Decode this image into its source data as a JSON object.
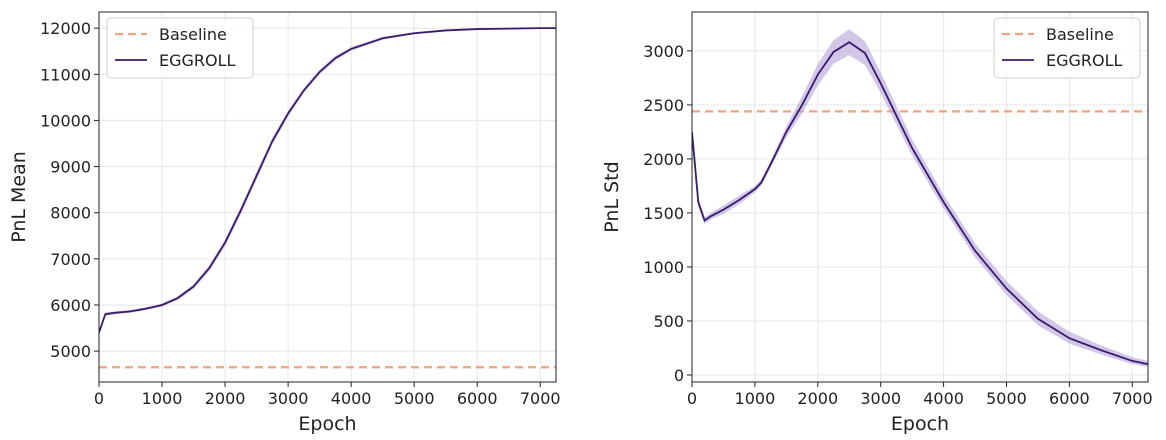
{
  "chart_data": [
    {
      "type": "line",
      "x_label": "Epoch",
      "y_label": "PnL Mean",
      "legend": "upper left",
      "grid": true,
      "xlim": [
        0,
        7250
      ],
      "ylim": [
        4330,
        12350
      ],
      "xticks": [
        0,
        1000,
        2000,
        3000,
        4000,
        5000,
        6000,
        7000
      ],
      "yticks": [
        5000,
        6000,
        7000,
        8000,
        9000,
        10000,
        11000,
        12000
      ],
      "x": [
        0,
        100,
        250,
        500,
        750,
        1000,
        1250,
        1500,
        1750,
        2000,
        2250,
        2500,
        2750,
        3000,
        3250,
        3500,
        3750,
        4000,
        4500,
        5000,
        5500,
        6000,
        6500,
        7000,
        7250
      ],
      "series": [
        {
          "name": "Baseline",
          "color": "#f2a27f",
          "dashed": true,
          "value": 4650
        },
        {
          "name": "EGGROLL",
          "color": "#3b1a6e",
          "band_color": "#b9abdb",
          "values": [
            5400,
            5800,
            5830,
            5860,
            5920,
            6000,
            6150,
            6400,
            6800,
            7350,
            8050,
            8800,
            9550,
            10150,
            10650,
            11050,
            11350,
            11550,
            11780,
            11890,
            11950,
            11980,
            11990,
            12000,
            12000
          ],
          "lower": [
            5350,
            5760,
            5800,
            5830,
            5890,
            5970,
            6110,
            6350,
            6740,
            7280,
            7970,
            8720,
            9480,
            10090,
            10600,
            11000,
            11300,
            11510,
            11750,
            11870,
            11930,
            11965,
            11978,
            11988,
            11990
          ],
          "upper": [
            5450,
            5840,
            5860,
            5890,
            5950,
            6030,
            6190,
            6450,
            6860,
            7420,
            8130,
            8880,
            9620,
            10210,
            10700,
            11100,
            11400,
            11590,
            11810,
            11910,
            11970,
            11995,
            12002,
            12012,
            12010
          ]
        }
      ]
    },
    {
      "type": "line",
      "x_label": "Epoch",
      "y_label": "PnL Std",
      "legend": "upper right",
      "grid": true,
      "xlim": [
        0,
        7250
      ],
      "ylim": [
        -65,
        3360
      ],
      "xticks": [
        0,
        1000,
        2000,
        3000,
        4000,
        5000,
        6000,
        7000
      ],
      "yticks": [
        0,
        500,
        1000,
        1500,
        2000,
        2500,
        3000
      ],
      "x": [
        0,
        100,
        200,
        300,
        500,
        750,
        1000,
        1100,
        1250,
        1500,
        1750,
        2000,
        2250,
        2500,
        2750,
        3000,
        3250,
        3500,
        4000,
        4500,
        5000,
        5500,
        6000,
        6500,
        7000,
        7250
      ],
      "series": [
        {
          "name": "Baseline",
          "color": "#f2a27f",
          "dashed": true,
          "value": 2440
        },
        {
          "name": "EGGROLL",
          "color": "#3b1a6e",
          "band_color": "#b9abdb",
          "values": [
            2250,
            1600,
            1430,
            1470,
            1530,
            1620,
            1720,
            1780,
            1950,
            2250,
            2500,
            2780,
            2990,
            3080,
            2980,
            2700,
            2400,
            2100,
            1600,
            1150,
            800,
            520,
            340,
            230,
            130,
            100
          ],
          "lower": [
            2200,
            1560,
            1400,
            1440,
            1490,
            1580,
            1690,
            1750,
            1920,
            2200,
            2420,
            2680,
            2880,
            2960,
            2870,
            2610,
            2320,
            2030,
            1540,
            1090,
            740,
            460,
            290,
            190,
            100,
            75
          ],
          "upper": [
            2300,
            1640,
            1460,
            1500,
            1570,
            1660,
            1750,
            1810,
            1980,
            2300,
            2580,
            2880,
            3100,
            3200,
            3090,
            2800,
            2490,
            2180,
            1670,
            1220,
            870,
            590,
            400,
            275,
            165,
            130
          ]
        }
      ]
    }
  ]
}
